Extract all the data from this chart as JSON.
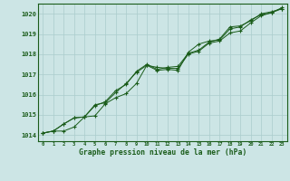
{
  "title": "Graphe pression niveau de la mer (hPa)",
  "bg_color": "#cce5e5",
  "grid_color": "#aacccc",
  "line_color": "#1a5c1a",
  "xlim": [
    -0.5,
    23.5
  ],
  "ylim": [
    1013.7,
    1020.5
  ],
  "yticks": [
    1014,
    1015,
    1016,
    1017,
    1018,
    1019,
    1020
  ],
  "xtick_labels": [
    "0",
    "1",
    "2",
    "3",
    "4",
    "5",
    "6",
    "7",
    "8",
    "9",
    "10",
    "11",
    "12",
    "13",
    "14",
    "15",
    "16",
    "17",
    "18",
    "19",
    "20",
    "21",
    "22",
    "23"
  ],
  "x": [
    0,
    1,
    2,
    3,
    4,
    5,
    6,
    7,
    8,
    9,
    10,
    11,
    12,
    13,
    14,
    15,
    16,
    17,
    18,
    19,
    20,
    21,
    22,
    23
  ],
  "line1": [
    1014.1,
    1014.2,
    1014.2,
    1014.4,
    1014.9,
    1014.95,
    1015.55,
    1015.85,
    1016.05,
    1016.55,
    1017.45,
    1017.35,
    1017.3,
    1017.3,
    1018.0,
    1018.15,
    1018.55,
    1018.65,
    1019.05,
    1019.15,
    1019.55,
    1019.9,
    1020.05,
    1020.25
  ],
  "line2": [
    1014.1,
    1014.2,
    1014.55,
    1014.85,
    1014.9,
    1015.5,
    1015.6,
    1016.1,
    1016.55,
    1017.1,
    1017.45,
    1017.2,
    1017.25,
    1017.2,
    1018.1,
    1018.5,
    1018.65,
    1018.7,
    1019.25,
    1019.35,
    1019.7,
    1019.95,
    1020.05,
    1020.3
  ],
  "line3": [
    1014.1,
    1014.2,
    1014.55,
    1014.85,
    1014.9,
    1015.45,
    1015.65,
    1016.2,
    1016.5,
    1017.15,
    1017.5,
    1017.25,
    1017.35,
    1017.4,
    1018.05,
    1018.2,
    1018.6,
    1018.75,
    1019.35,
    1019.4,
    1019.65,
    1020.0,
    1020.1,
    1020.25
  ]
}
